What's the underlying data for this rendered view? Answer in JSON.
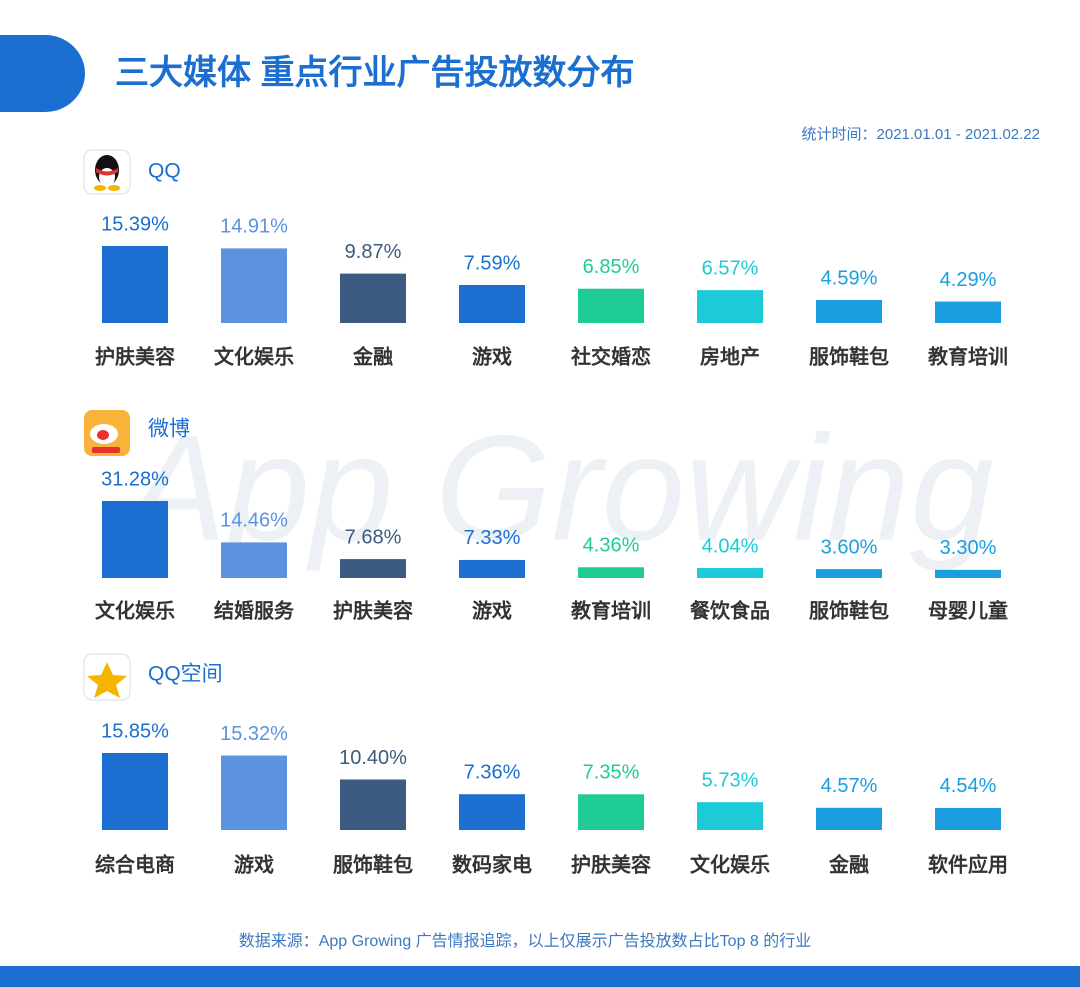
{
  "page": {
    "title": "三大媒体 重点行业广告投放数分布",
    "date_range": "统计时间：2021.01.01  - 2021.02.22",
    "watermark": "App Growing",
    "source": "数据来源：App Growing 广告情报追踪，以上仅展示广告投放数占比Top 8 的行业"
  },
  "chart_data": [
    {
      "type": "bar",
      "title": "QQ",
      "categories": [
        "护肤美容",
        "文化娱乐",
        "金融",
        "游戏",
        "社交婚恋",
        "房地产",
        "服饰鞋包",
        "教育培训"
      ],
      "values": [
        15.39,
        14.91,
        9.87,
        7.59,
        6.85,
        6.57,
        4.59,
        4.29
      ],
      "value_labels": [
        "15.39%",
        "14.91%",
        "9.87%",
        "7.59%",
        "6.85%",
        "6.57%",
        "4.59%",
        "4.29%"
      ],
      "colors": [
        "#1a6fd0",
        "#5b93e0",
        "#3d5a80",
        "#1a6fd0",
        "#1fcc96",
        "#1ccad8",
        "#1a9ee0",
        "#1a9ee0"
      ]
    },
    {
      "type": "bar",
      "title": "微博",
      "categories": [
        "文化娱乐",
        "结婚服务",
        "护肤美容",
        "游戏",
        "教育培训",
        "餐饮食品",
        "服饰鞋包",
        "母婴儿童"
      ],
      "values": [
        31.28,
        14.46,
        7.68,
        7.33,
        4.36,
        4.04,
        3.6,
        3.3
      ],
      "value_labels": [
        "31.28%",
        "14.46%",
        "7.68%",
        "7.33%",
        "4.36%",
        "4.04%",
        "3.60%",
        "3.30%"
      ],
      "colors": [
        "#1a6fd0",
        "#5b93e0",
        "#3d5a80",
        "#1a6fd0",
        "#1fcc96",
        "#1ccad8",
        "#1a9ee0",
        "#1a9ee0"
      ]
    },
    {
      "type": "bar",
      "title": "QQ空间",
      "categories": [
        "综合电商",
        "游戏",
        "服饰鞋包",
        "数码家电",
        "护肤美容",
        "文化娱乐",
        "金融",
        "软件应用"
      ],
      "values": [
        15.85,
        15.32,
        10.4,
        7.36,
        7.35,
        5.73,
        4.57,
        4.54
      ],
      "value_labels": [
        "15.85%",
        "15.32%",
        "10.40%",
        "7.36%",
        "7.35%",
        "5.73%",
        "4.57%",
        "4.54%"
      ],
      "colors": [
        "#1a6fd0",
        "#5b93e0",
        "#3d5a80",
        "#1a6fd0",
        "#1fcc96",
        "#1ccad8",
        "#1a9ee0",
        "#1a9ee0"
      ]
    }
  ]
}
